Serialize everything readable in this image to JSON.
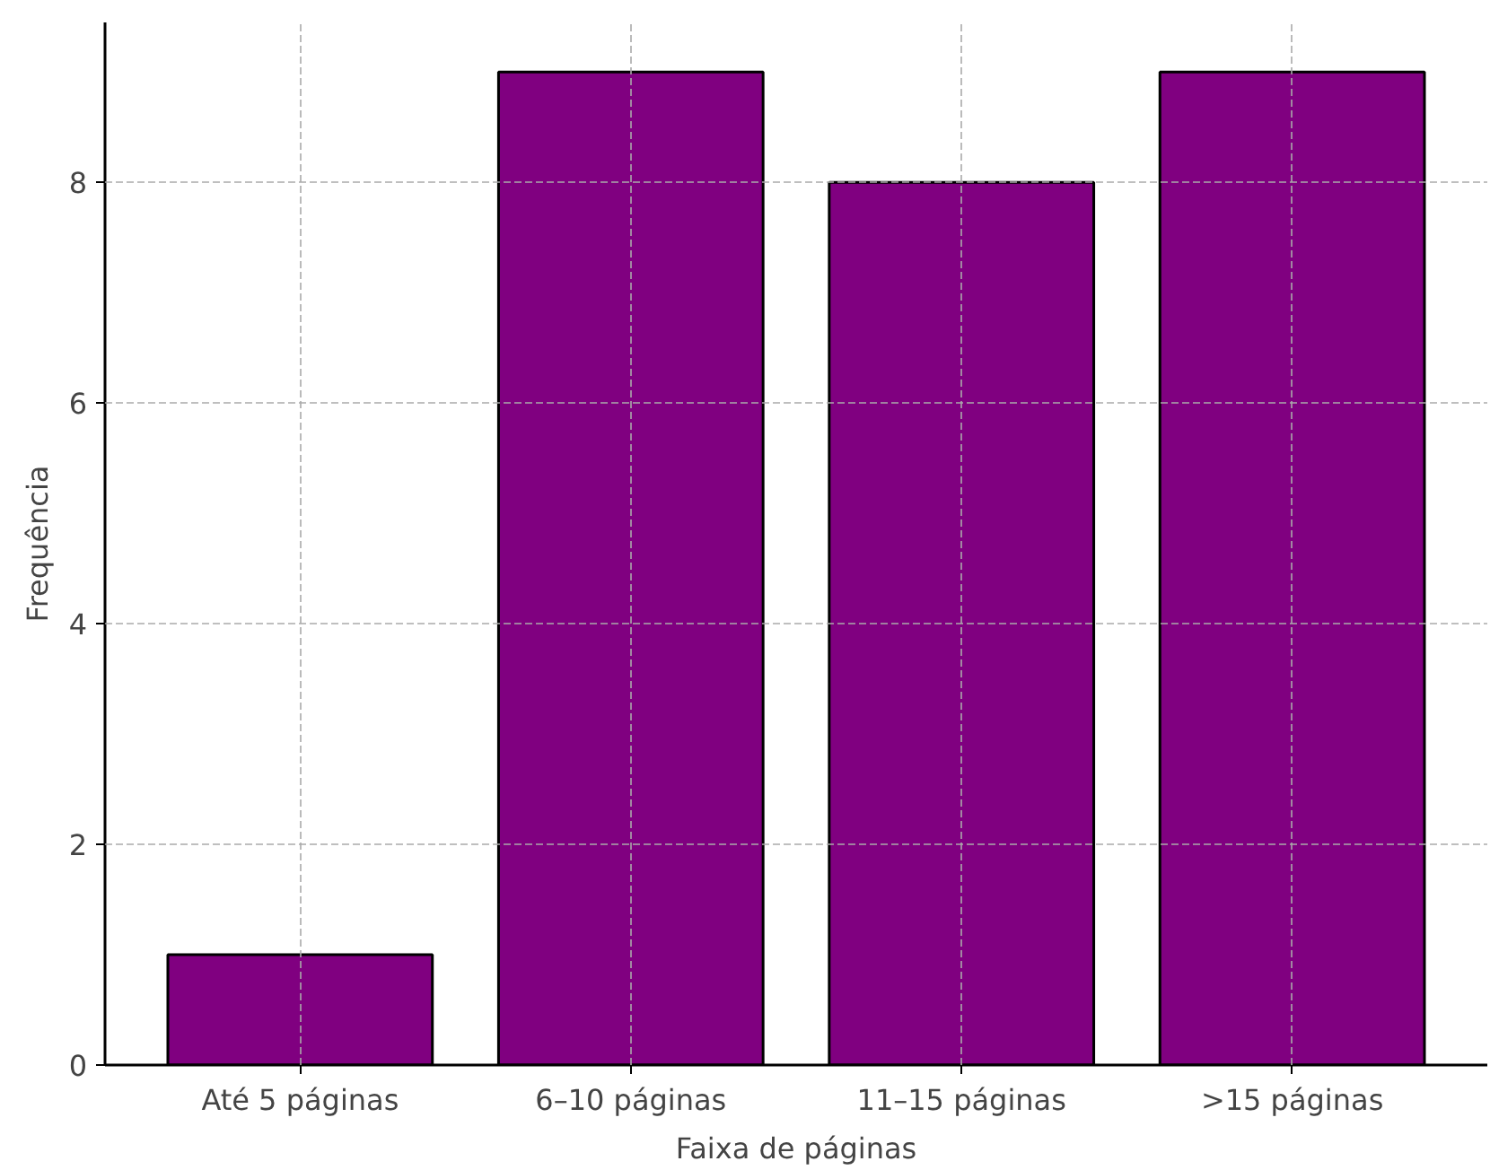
{
  "chart_data": {
    "type": "bar",
    "xlabel": "Faixa de páginas",
    "ylabel": "Frequência",
    "categories": [
      "Até 5 páginas",
      "6–10 páginas",
      "11–15 páginas",
      ">15 páginas"
    ],
    "values": [
      1,
      9,
      8,
      9
    ],
    "color": "#800080",
    "ylim": [
      0,
      9.45
    ],
    "yticks": [
      0,
      2,
      4,
      6,
      8
    ],
    "grid": true
  }
}
